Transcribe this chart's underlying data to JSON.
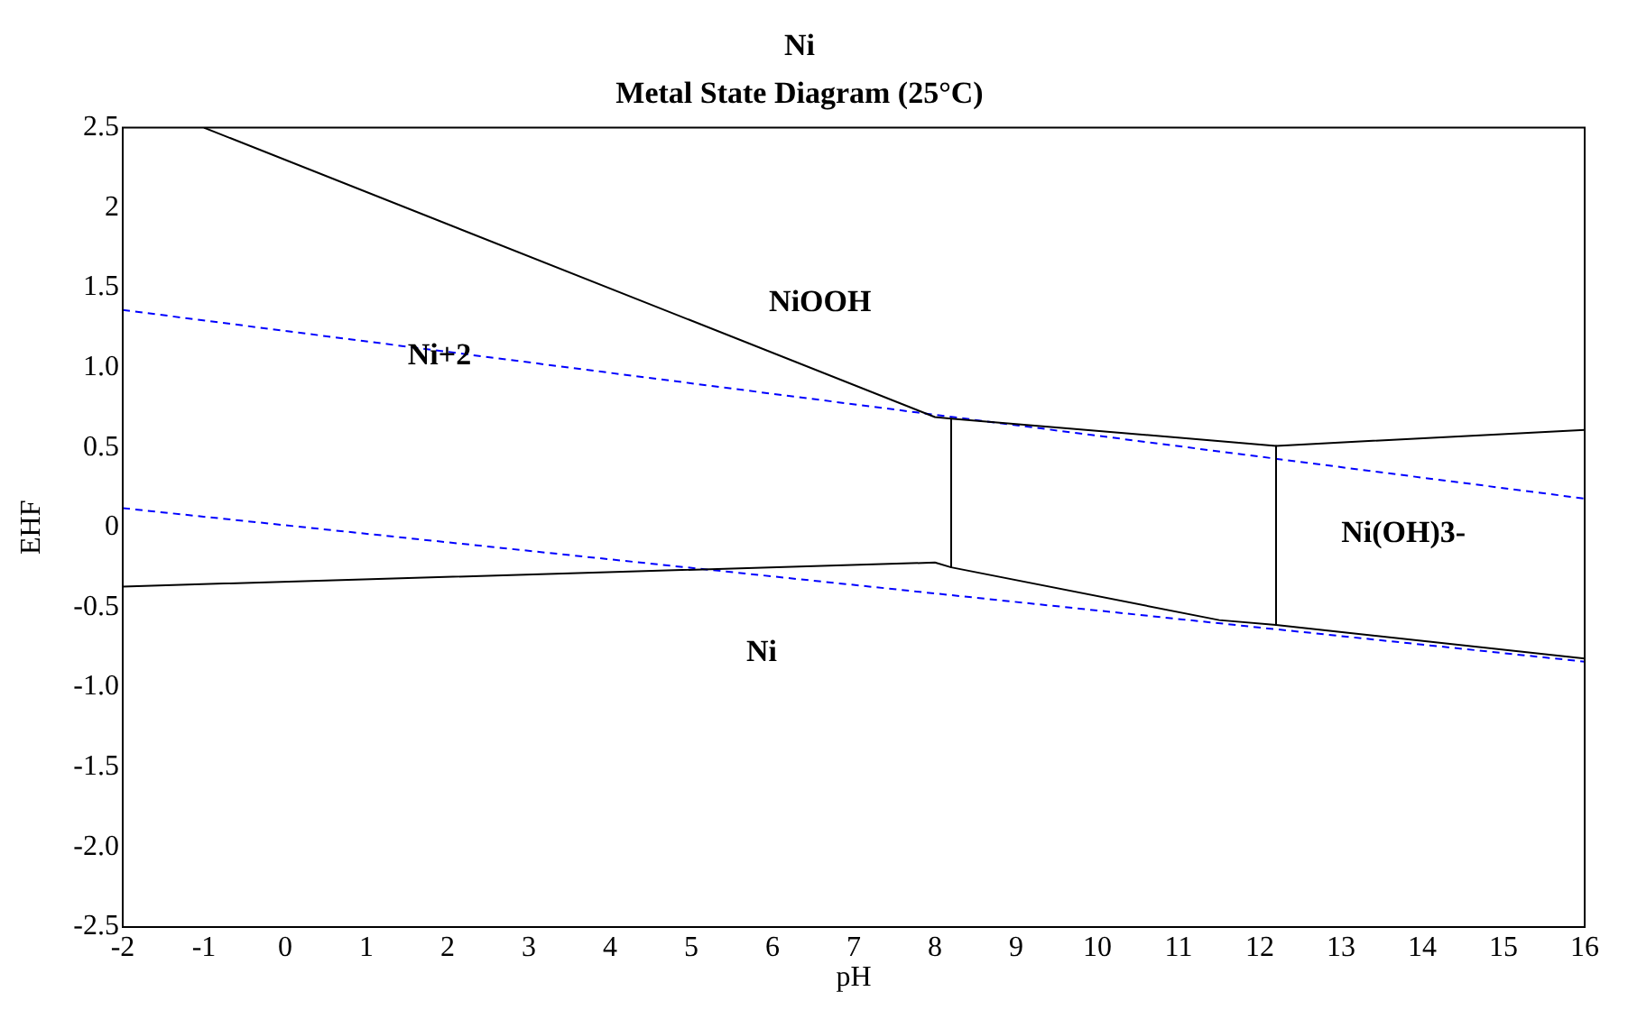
{
  "chart_data": {
    "type": "line",
    "title": "Ni",
    "subtitle": "Metal State Diagram (25°C)",
    "xlabel": "pH",
    "ylabel": "EHF",
    "xlim": [
      -2,
      16
    ],
    "xticks": [
      -2,
      -1,
      0,
      1,
      2,
      3,
      4,
      5,
      6,
      7,
      8,
      9,
      10,
      11,
      12,
      13,
      14,
      15,
      16
    ],
    "ylim": [
      -2.5,
      2.5
    ],
    "yticks": [
      {
        "value": -2.5,
        "label": "-2.5"
      },
      {
        "value": -2,
        "label": "-2.0"
      },
      {
        "value": -1.5,
        "label": "-1.5"
      },
      {
        "value": -1,
        "label": "-1.0"
      },
      -0.5,
      0,
      0.5,
      {
        "value": 1,
        "label": "1.0"
      },
      1.5,
      2,
      2.5
    ],
    "grid": false,
    "legend": false,
    "marker": "none",
    "series": [
      {
        "color": "#000000",
        "line_style": "solid",
        "x": [
          -1,
          8.0,
          8.2,
          12.2,
          16
        ],
        "values": [
          2.5,
          0.69,
          0.68,
          0.51,
          0.61
        ]
      },
      {
        "color": "#000000",
        "line_style": "solid",
        "x": [
          8.2,
          8.2
        ],
        "values": [
          0.68,
          -0.25
        ]
      },
      {
        "color": "#000000",
        "line_style": "solid",
        "x": [
          12.2,
          12.2
        ],
        "values": [
          0.51,
          -0.61
        ]
      },
      {
        "color": "#000000",
        "line_style": "solid",
        "x": [
          -2,
          8.0,
          8.2,
          11.5,
          12.2,
          16
        ],
        "values": [
          -0.37,
          -0.22,
          -0.25,
          -0.58,
          -0.61,
          -0.82
        ]
      },
      {
        "color": "#0000ff",
        "line_style": "dashed",
        "x": [
          -2,
          16
        ],
        "values": [
          1.36,
          0.18
        ]
      },
      {
        "color": "#0000ff",
        "line_style": "dashed",
        "x": [
          -2,
          16
        ],
        "values": [
          0.12,
          -0.84
        ]
      }
    ],
    "annotations": [
      {
        "text": "Ni+2",
        "x": 1.9,
        "y": 1.07
      },
      "NiOOH",
      "Ni(OH)3-",
      "Ni"
    ]
  }
}
